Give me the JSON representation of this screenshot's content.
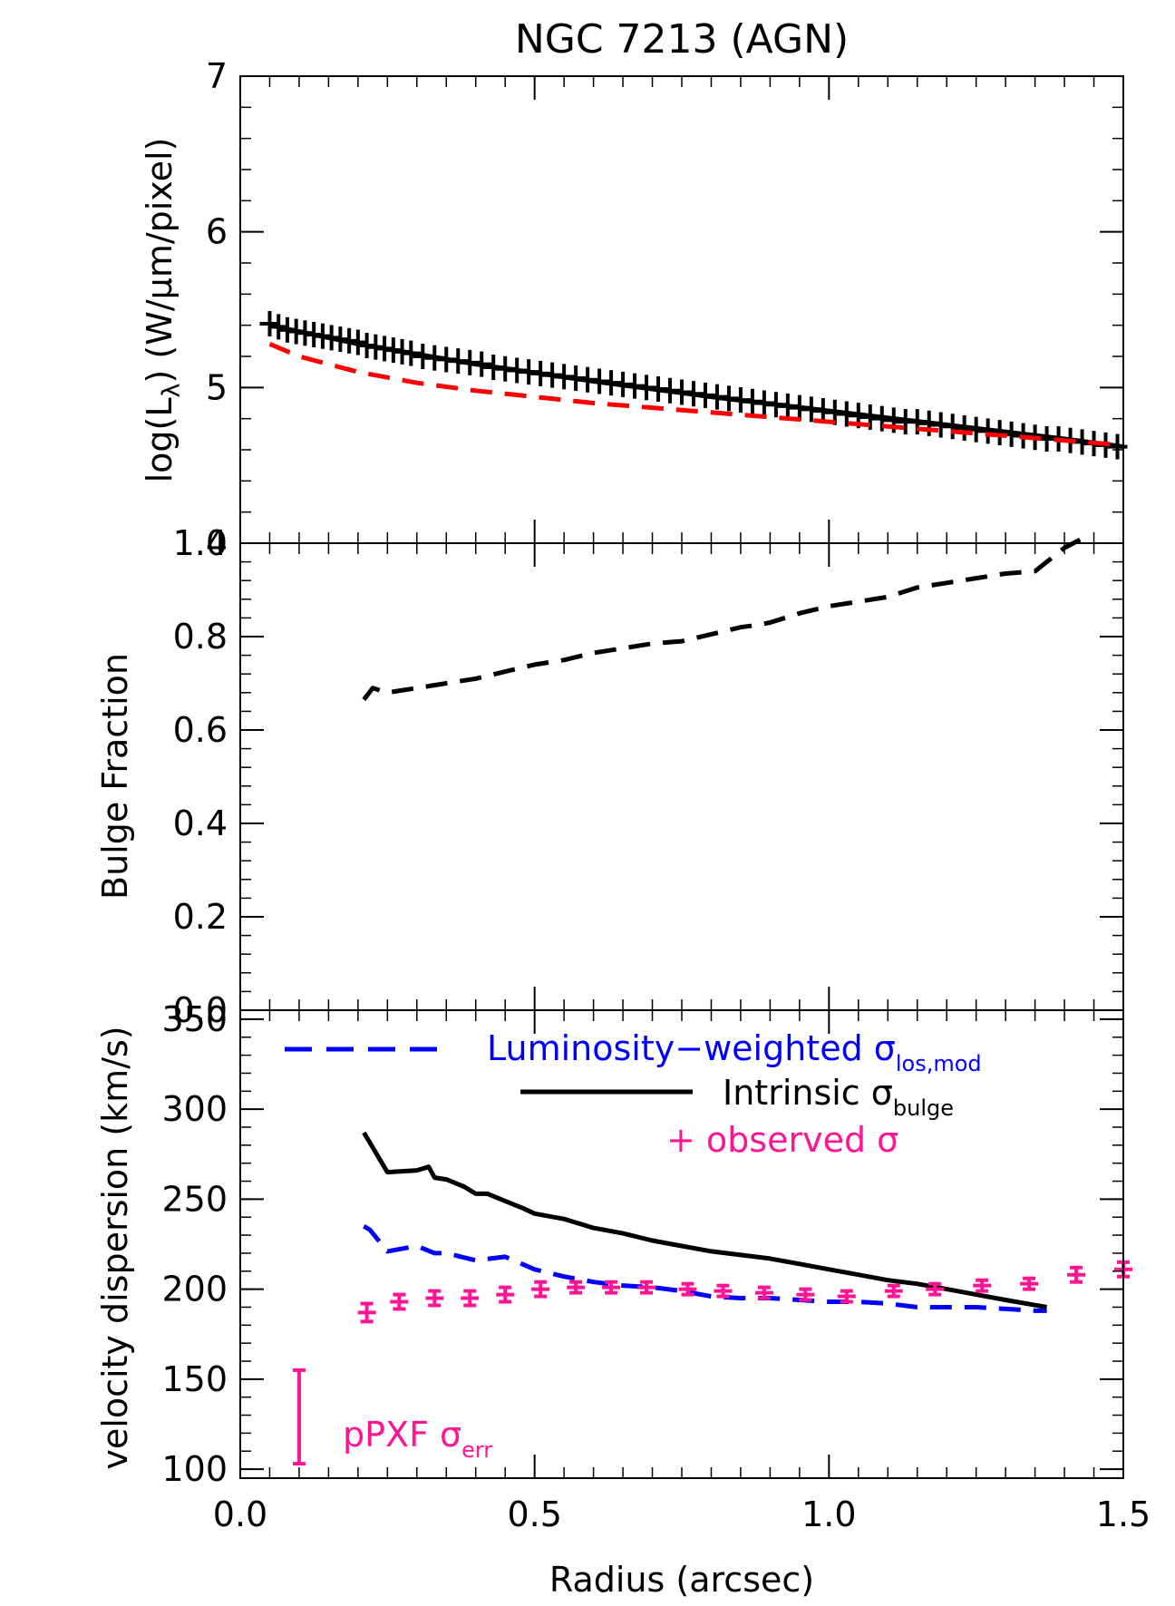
{
  "chart_data": {
    "title": "NGC 7213 (AGN)",
    "x_label": "Radius (arcsec)",
    "xlim": [
      0.0,
      1.5
    ],
    "x_ticks": [
      "0.0",
      "0.5",
      "1.0",
      "1.5"
    ],
    "panels": [
      {
        "id": "luminosity",
        "type": "line",
        "ylabel": {
          "prefix": "log(L",
          "sub": "λ",
          "suffix": ") (W/μm/pixel)"
        },
        "ylim": [
          4,
          7
        ],
        "y_ticks": [
          "4",
          "5",
          "6",
          "7"
        ],
        "series": [
          {
            "name": "",
            "style": "line",
            "color": "#000000",
            "x": [
              0.05,
              0.2,
              0.4,
              0.6,
              0.8,
              1.0,
              1.2,
              1.4,
              1.5
            ],
            "y": [
              5.4,
              5.28,
              5.15,
              5.04,
              4.94,
              4.85,
              4.76,
              4.67,
              4.62
            ]
          },
          {
            "name": "",
            "style": "points",
            "marker": "+",
            "color": "#000000",
            "x": [
              0.05,
              0.065,
              0.08,
              0.095,
              0.11,
              0.125,
              0.14,
              0.155,
              0.17,
              0.185,
              0.2,
              0.215,
              0.23,
              0.245,
              0.26,
              0.275,
              0.29,
              0.31,
              0.33,
              0.35,
              0.37,
              0.39,
              0.41,
              0.43,
              0.45,
              0.47,
              0.49,
              0.51,
              0.53,
              0.55,
              0.57,
              0.59,
              0.61,
              0.63,
              0.65,
              0.67,
              0.69,
              0.71,
              0.73,
              0.75,
              0.77,
              0.79,
              0.81,
              0.83,
              0.85,
              0.87,
              0.89,
              0.91,
              0.93,
              0.95,
              0.97,
              0.99,
              1.01,
              1.03,
              1.05,
              1.07,
              1.09,
              1.11,
              1.13,
              1.15,
              1.17,
              1.19,
              1.21,
              1.23,
              1.25,
              1.27,
              1.29,
              1.31,
              1.33,
              1.35,
              1.37,
              1.39,
              1.41,
              1.43,
              1.45,
              1.47,
              1.49
            ],
            "y": [
              5.41,
              5.39,
              5.37,
              5.36,
              5.35,
              5.34,
              5.33,
              5.32,
              5.31,
              5.3,
              5.29,
              5.27,
              5.26,
              5.25,
              5.24,
              5.23,
              5.22,
              5.2,
              5.19,
              5.18,
              5.17,
              5.16,
              5.15,
              5.13,
              5.12,
              5.11,
              5.1,
              5.09,
              5.08,
              5.07,
              5.06,
              5.05,
              5.04,
              5.03,
              5.02,
              5.01,
              5.0,
              4.99,
              4.98,
              4.97,
              4.96,
              4.95,
              4.94,
              4.93,
              4.92,
              4.91,
              4.9,
              4.89,
              4.88,
              4.87,
              4.86,
              4.85,
              4.84,
              4.83,
              4.82,
              4.81,
              4.8,
              4.79,
              4.78,
              4.78,
              4.77,
              4.76,
              4.75,
              4.74,
              4.73,
              4.72,
              4.71,
              4.7,
              4.69,
              4.68,
              4.67,
              4.67,
              4.66,
              4.65,
              4.64,
              4.63,
              4.62
            ]
          },
          {
            "name": "",
            "style": "dashed",
            "color": "#ff0000",
            "x": [
              0.05,
              0.1,
              0.2,
              0.3,
              0.4,
              0.5,
              0.6,
              0.7,
              0.8,
              0.9,
              1.0,
              1.1,
              1.2,
              1.3,
              1.4,
              1.5
            ],
            "y": [
              5.28,
              5.2,
              5.1,
              5.03,
              4.98,
              4.94,
              4.9,
              4.87,
              4.84,
              4.81,
              4.78,
              4.75,
              4.72,
              4.69,
              4.66,
              4.63
            ]
          }
        ]
      },
      {
        "id": "bulge_fraction",
        "type": "line",
        "ylabel": {
          "text": "Bulge Fraction"
        },
        "ylim": [
          0.0,
          1.0
        ],
        "y_ticks": [
          "0.0",
          "0.2",
          "0.4",
          "0.6",
          "0.8",
          "1.0"
        ],
        "series": [
          {
            "name": "",
            "style": "dashed",
            "color": "#000000",
            "x": [
              0.21,
              0.225,
              0.25,
              0.3,
              0.35,
              0.4,
              0.45,
              0.5,
              0.55,
              0.6,
              0.65,
              0.7,
              0.75,
              0.8,
              0.85,
              0.88,
              0.9,
              0.95,
              1.0,
              1.05,
              1.1,
              1.15,
              1.2,
              1.25,
              1.3,
              1.35,
              1.37,
              1.4,
              1.43
            ],
            "y": [
              0.665,
              0.69,
              0.68,
              0.69,
              0.7,
              0.71,
              0.725,
              0.74,
              0.75,
              0.765,
              0.775,
              0.785,
              0.79,
              0.805,
              0.82,
              0.825,
              0.83,
              0.85,
              0.865,
              0.875,
              0.885,
              0.905,
              0.915,
              0.925,
              0.935,
              0.94,
              0.96,
              0.99,
              1.01
            ]
          }
        ]
      },
      {
        "id": "velocity_dispersion",
        "type": "line",
        "ylabel": {
          "text": "velocity dispersion (km/s)"
        },
        "ylim": [
          95,
          355
        ],
        "y_ticks": [
          "100",
          "150",
          "200",
          "250",
          "300",
          "350"
        ],
        "series": [
          {
            "name": "Luminosity−weighted σ",
            "name_sub": "los,mod",
            "style": "dashed",
            "color": "#0000ff",
            "x": [
              0.21,
              0.22,
              0.25,
              0.3,
              0.33,
              0.35,
              0.4,
              0.45,
              0.5,
              0.55,
              0.6,
              0.65,
              0.7,
              0.75,
              0.8,
              0.85,
              0.9,
              0.95,
              1.0,
              1.05,
              1.1,
              1.15,
              1.2,
              1.25,
              1.3,
              1.35,
              1.37
            ],
            "y": [
              235,
              233,
              221,
              224,
              220,
              220,
              216,
              218,
              211,
              207,
              204,
              202,
              201,
              199,
              196,
              195,
              195,
              194,
              193,
              193,
              192,
              190,
              190,
              190,
              189,
              188,
              188
            ]
          },
          {
            "name": "Intrinsic σ",
            "name_sub": "bulge",
            "style": "solid",
            "color": "#000000",
            "x": [
              0.21,
              0.25,
              0.3,
              0.32,
              0.33,
              0.35,
              0.38,
              0.4,
              0.42,
              0.45,
              0.48,
              0.5,
              0.55,
              0.6,
              0.65,
              0.7,
              0.75,
              0.8,
              0.85,
              0.9,
              0.95,
              1.0,
              1.05,
              1.1,
              1.15,
              1.2,
              1.25,
              1.3,
              1.37
            ],
            "y": [
              287,
              265,
              266,
              268,
              262,
              261,
              257,
              253,
              253,
              249,
              245,
              242,
              239,
              234,
              231,
              227,
              224,
              221,
              219,
              217,
              214,
              211,
              208,
              205,
              203,
              200,
              197,
              194,
              190
            ]
          },
          {
            "name": "+ observed σ",
            "style": "errorbar",
            "color": "#ff1493",
            "x": [
              0.215,
              0.27,
              0.33,
              0.39,
              0.45,
              0.51,
              0.57,
              0.63,
              0.69,
              0.76,
              0.82,
              0.89,
              0.96,
              1.03,
              1.11,
              1.18,
              1.26,
              1.34,
              1.42,
              1.5
            ],
            "y": [
              187,
              193,
              195,
              195,
              197,
              200,
              201,
              201,
              201,
              200,
              199,
              198,
              197,
              196,
              199,
              200,
              202,
              203,
              208,
              211
            ],
            "err": [
              5,
              4,
              4,
              4,
              4,
              4,
              3,
              3,
              3,
              3,
              3,
              3,
              3,
              3,
              3,
              3,
              3,
              3,
              4,
              4
            ]
          },
          {
            "name": "pPXF σ",
            "name_sub": "err",
            "style": "errorbar-key",
            "color": "#ff1493",
            "x": [
              0.1
            ],
            "y_range": [
              103,
              155
            ]
          }
        ]
      }
    ]
  }
}
